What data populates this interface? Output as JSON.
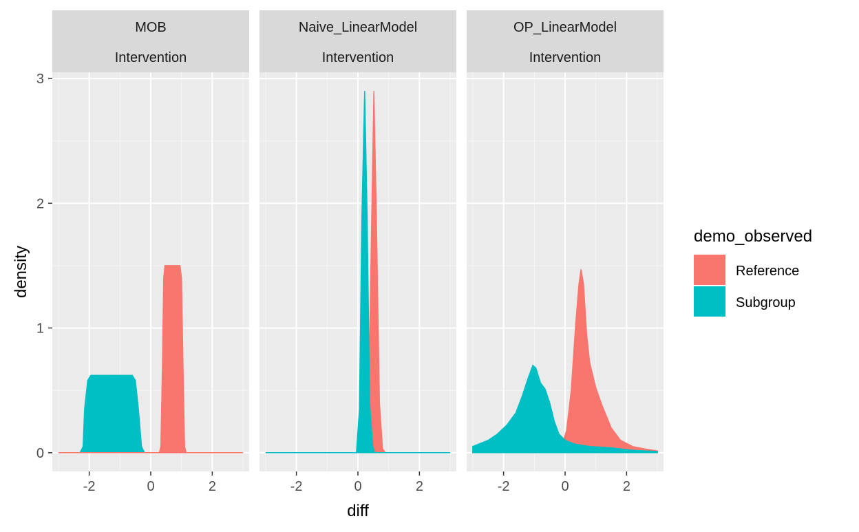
{
  "chart_data": {
    "type": "area",
    "xlabel": "diff",
    "ylabel": "density",
    "xlim": [
      -3.2,
      3.2
    ],
    "ylim": [
      -0.15,
      3.05
    ],
    "x_ticks": [
      -2,
      0,
      2
    ],
    "x_tick_labels": [
      "-2",
      "0",
      "2"
    ],
    "y_ticks": [
      0,
      1,
      2,
      3
    ],
    "y_tick_labels": [
      "0",
      "1",
      "2",
      "3"
    ],
    "grid": true,
    "legend": {
      "title": "demo_observed",
      "position": "right",
      "entries": [
        {
          "label": "Reference",
          "color": "#F8766D"
        },
        {
          "label": "Subgroup",
          "color": "#00BFC4"
        }
      ]
    },
    "panels": [
      {
        "strip_top": "MOB",
        "strip_bottom": "Intervention",
        "series": [
          {
            "name": "Subgroup",
            "color": "#00BFC4",
            "points": [
              [
                -3,
                0
              ],
              [
                -2.3,
                0
              ],
              [
                -2.2,
                0.05
              ],
              [
                -2.15,
                0.35
              ],
              [
                -2.05,
                0.58
              ],
              [
                -1.95,
                0.62
              ],
              [
                -1,
                0.62
              ],
              [
                -0.6,
                0.62
              ],
              [
                -0.5,
                0.58
              ],
              [
                -0.4,
                0.35
              ],
              [
                -0.3,
                0.05
              ],
              [
                -0.2,
                0
              ],
              [
                3,
                0
              ]
            ]
          },
          {
            "name": "Reference",
            "color": "#F8766D",
            "points": [
              [
                -3,
                0
              ],
              [
                0.28,
                0
              ],
              [
                0.33,
                0.05
              ],
              [
                0.38,
                0.7
              ],
              [
                0.42,
                1.4
              ],
              [
                0.46,
                1.5
              ],
              [
                0.95,
                1.5
              ],
              [
                1.0,
                1.4
              ],
              [
                1.05,
                0.7
              ],
              [
                1.1,
                0.05
              ],
              [
                1.15,
                0
              ],
              [
                3,
                0
              ]
            ]
          }
        ]
      },
      {
        "strip_top": "Naive_LinearModel",
        "strip_bottom": "Intervention",
        "series": [
          {
            "name": "Reference",
            "color": "#F8766D",
            "points": [
              [
                -3,
                0
              ],
              [
                0.25,
                0
              ],
              [
                0.35,
                0.4
              ],
              [
                0.45,
                1.9
              ],
              [
                0.52,
                2.9
              ],
              [
                0.6,
                1.9
              ],
              [
                0.7,
                0.4
              ],
              [
                0.8,
                0.03
              ],
              [
                0.9,
                0
              ],
              [
                3,
                0
              ]
            ]
          },
          {
            "name": "Subgroup",
            "color": "#00BFC4",
            "points": [
              [
                -3,
                0
              ],
              [
                -0.05,
                0
              ],
              [
                0.05,
                0.35
              ],
              [
                0.13,
                1.9
              ],
              [
                0.22,
                2.9
              ],
              [
                0.3,
                1.9
              ],
              [
                0.38,
                0.4
              ],
              [
                0.48,
                0.05
              ],
              [
                0.55,
                0
              ],
              [
                3,
                0
              ]
            ]
          }
        ]
      },
      {
        "strip_top": "OP_LinearModel",
        "strip_bottom": "Intervention",
        "series": [
          {
            "name": "Reference",
            "color": "#F8766D",
            "points": [
              [
                -3,
                0.005
              ],
              [
                -1.5,
                0.005
              ],
              [
                -1,
                0.005
              ],
              [
                -0.5,
                0.01
              ],
              [
                -0.3,
                0.02
              ],
              [
                -0.1,
                0.06
              ],
              [
                0.05,
                0.18
              ],
              [
                0.2,
                0.5
              ],
              [
                0.35,
                1.05
              ],
              [
                0.45,
                1.35
              ],
              [
                0.52,
                1.47
              ],
              [
                0.6,
                1.35
              ],
              [
                0.7,
                0.95
              ],
              [
                0.8,
                0.72
              ],
              [
                1.0,
                0.52
              ],
              [
                1.2,
                0.38
              ],
              [
                1.5,
                0.2
              ],
              [
                1.8,
                0.1
              ],
              [
                2.2,
                0.05
              ],
              [
                2.6,
                0.03
              ],
              [
                3,
                0.015
              ]
            ]
          },
          {
            "name": "Subgroup",
            "color": "#00BFC4",
            "points": [
              [
                -3,
                0.05
              ],
              [
                -2.8,
                0.07
              ],
              [
                -2.5,
                0.1
              ],
              [
                -2.2,
                0.15
              ],
              [
                -1.9,
                0.22
              ],
              [
                -1.6,
                0.32
              ],
              [
                -1.4,
                0.45
              ],
              [
                -1.2,
                0.6
              ],
              [
                -1.05,
                0.7
              ],
              [
                -0.95,
                0.68
              ],
              [
                -0.8,
                0.56
              ],
              [
                -0.65,
                0.51
              ],
              [
                -0.5,
                0.4
              ],
              [
                -0.35,
                0.25
              ],
              [
                -0.2,
                0.15
              ],
              [
                0,
                0.1
              ],
              [
                0.3,
                0.07
              ],
              [
                0.8,
                0.05
              ],
              [
                1.5,
                0.04
              ],
              [
                2.2,
                0.02
              ],
              [
                3,
                0.01
              ]
            ]
          }
        ]
      }
    ]
  }
}
